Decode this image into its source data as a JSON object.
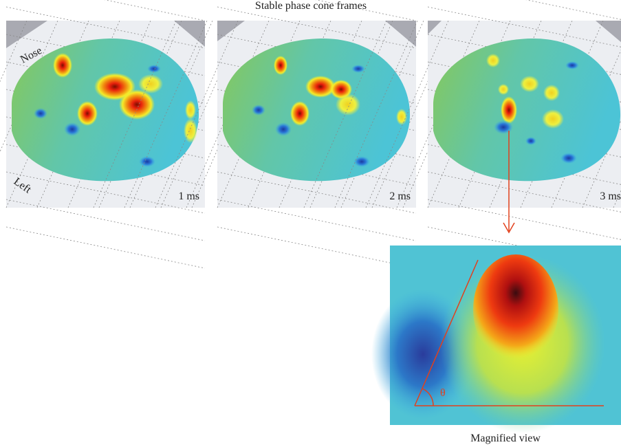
{
  "title": "Stable phase cone frames",
  "frames": [
    {
      "label": "1 ms"
    },
    {
      "label": "2 ms"
    },
    {
      "label": "3 ms"
    }
  ],
  "orientation_labels": {
    "nose": "Nose",
    "left": "Left"
  },
  "magnified": {
    "caption": "Magnified view",
    "angle_label": "θ"
  }
}
